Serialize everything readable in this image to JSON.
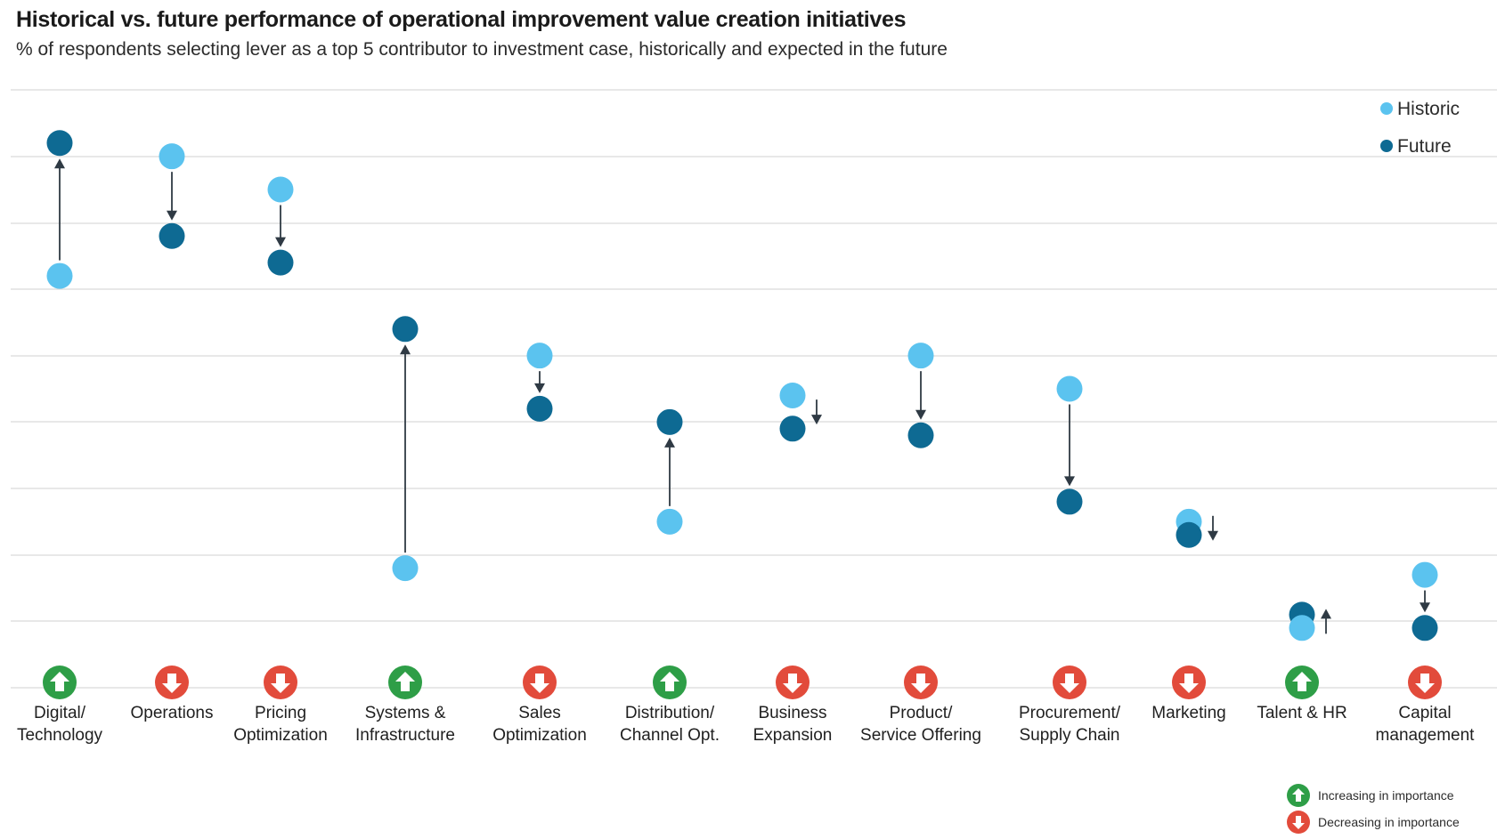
{
  "chart_data": {
    "type": "scatter",
    "title": "Historical vs. future performance of operational improvement value creation initiatives",
    "subtitle": "% of respondents selecting lever as a top 5 contributor to investment case, historically and expected in the future",
    "ylim": [
      0,
      45
    ],
    "grid": true,
    "legend_position": "top-right",
    "series_names": {
      "historic": "Historic",
      "future": "Future"
    },
    "status_legend": {
      "up": "Increasing in importance",
      "down": "Decreasing in importance"
    },
    "colors": {
      "historic": "#5bc3ef",
      "future": "#0e6a93",
      "up": "#2e9e47",
      "down": "#e24b3b",
      "arrow": "#2f3a44",
      "grid": "#d9d9d9"
    },
    "categories": [
      {
        "label": [
          "Digital/",
          "Technology"
        ],
        "historic": 31,
        "future": 41,
        "trend": "up"
      },
      {
        "label": [
          "Operations"
        ],
        "historic": 40,
        "future": 34,
        "trend": "down"
      },
      {
        "label": [
          "Pricing",
          "Optimization"
        ],
        "historic": 37.5,
        "future": 32,
        "trend": "down"
      },
      {
        "label": [
          "Systems &",
          "Infrastructure"
        ],
        "historic": 9,
        "future": 27,
        "trend": "up"
      },
      {
        "label": [
          "Sales",
          "Optimization"
        ],
        "historic": 25,
        "future": 21,
        "trend": "down"
      },
      {
        "label": [
          "Distribution/",
          "Channel Opt."
        ],
        "historic": 12.5,
        "future": 20,
        "trend": "up"
      },
      {
        "label": [
          "Business",
          "Expansion"
        ],
        "historic": 22,
        "future": 19.5,
        "trend": "down"
      },
      {
        "label": [
          "Product/",
          "Service Offering"
        ],
        "historic": 25,
        "future": 19,
        "trend": "down"
      },
      {
        "label": [
          "Procurement/",
          "Supply Chain"
        ],
        "historic": 22.5,
        "future": 14,
        "trend": "down"
      },
      {
        "label": [
          "Marketing"
        ],
        "historic": 12.5,
        "future": 11.5,
        "trend": "down"
      },
      {
        "label": [
          "Talent & HR"
        ],
        "historic": 4.5,
        "future": 5.5,
        "trend": "up"
      },
      {
        "label": [
          "Capital",
          "management"
        ],
        "historic": 8.5,
        "future": 4.5,
        "trend": "down"
      }
    ]
  }
}
